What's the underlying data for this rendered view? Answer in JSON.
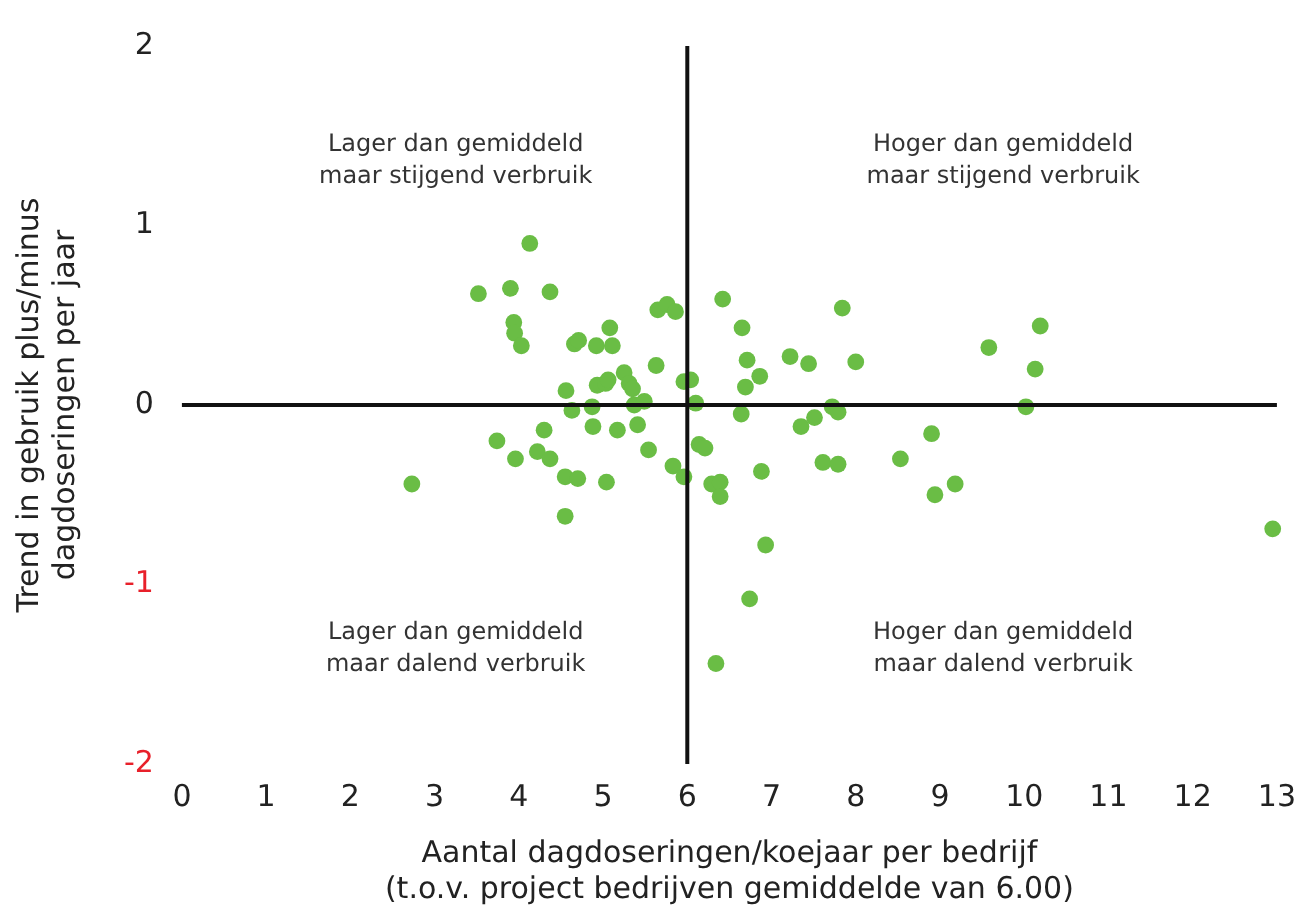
{
  "chart_data": {
    "type": "scatter",
    "xlabel": "Aantal dagdoseringen/koejaar per bedrijf\n(t.o.v. project bedrijven gemiddelde van 6.00)",
    "ylabel": "Trend in gebruik plus/minus\ndagdoseringen per jaar",
    "xlim": [
      0,
      13
    ],
    "xticks": [
      0,
      1,
      2,
      3,
      4,
      5,
      6,
      7,
      8,
      9,
      10,
      11,
      12,
      13
    ],
    "ylim": [
      -2,
      2
    ],
    "yticks": [
      -2,
      -1,
      0,
      1,
      2
    ],
    "grid": false,
    "legend": false,
    "marker": "circle",
    "ref_lines": [
      {
        "axis": "x",
        "value": 6,
        "color": "#111111"
      },
      {
        "axis": "y",
        "value": 0,
        "color": "#111111"
      }
    ],
    "annotations": [
      "Lager dan gemiddeld\nmaar stijgend verbruik",
      "Hoger dan gemiddeld\nmaar stijgend verbruik",
      "Lager dan gemiddeld\nmaar dalend verbruik",
      "Hoger dan gemiddeld\nmaar dalend verbruik"
    ],
    "series": [
      {
        "color": "#6abd45",
        "x": [
          3.52,
          3.9,
          4.13,
          4.37,
          3.94,
          3.95,
          4.03,
          2.73,
          3.74,
          3.96,
          4.22,
          4.3,
          4.37,
          4.56,
          4.55,
          4.7,
          4.55,
          4.63,
          4.66,
          4.71,
          4.87,
          4.88,
          4.92,
          4.93,
          5.03,
          5.06,
          5.08,
          5.11,
          5.04,
          5.17,
          5.25,
          5.31,
          5.35,
          5.37,
          5.41,
          5.49,
          5.54,
          5.63,
          5.65,
          5.76,
          5.86,
          5.83,
          5.96,
          5.96,
          6.04,
          6.1,
          6.14,
          6.21,
          6.29,
          6.39,
          6.39,
          6.34,
          6.42,
          6.64,
          6.65,
          6.69,
          6.71,
          6.86,
          6.88,
          6.93,
          6.74,
          7.22,
          7.35,
          7.44,
          7.51,
          7.61,
          7.72,
          7.79,
          7.79,
          7.84,
          8.0,
          8.53,
          8.9,
          8.94,
          9.18,
          9.58,
          10.02,
          10.13,
          10.19,
          12.95
        ],
        "values": [
          0.62,
          0.65,
          0.9,
          0.63,
          0.46,
          0.4,
          0.33,
          -0.44,
          -0.2,
          -0.3,
          -0.26,
          -0.14,
          -0.3,
          0.08,
          -0.4,
          -0.41,
          -0.62,
          -0.03,
          0.34,
          0.36,
          -0.01,
          -0.12,
          0.33,
          0.11,
          0.12,
          0.14,
          0.43,
          0.33,
          -0.43,
          -0.14,
          0.18,
          0.12,
          0.09,
          0.0,
          -0.11,
          0.02,
          -0.25,
          0.22,
          0.53,
          0.56,
          0.52,
          -0.34,
          -0.4,
          0.13,
          0.14,
          0.01,
          -0.22,
          -0.24,
          -0.44,
          -0.43,
          -0.51,
          -1.44,
          0.59,
          -0.05,
          0.43,
          0.1,
          0.25,
          0.16,
          -0.37,
          -0.78,
          -1.08,
          0.27,
          -0.12,
          0.23,
          -0.07,
          -0.32,
          -0.01,
          -0.04,
          -0.33,
          0.54,
          0.24,
          -0.3,
          -0.16,
          -0.5,
          -0.44,
          0.32,
          -0.01,
          0.2,
          0.44,
          -0.69
        ]
      }
    ]
  }
}
